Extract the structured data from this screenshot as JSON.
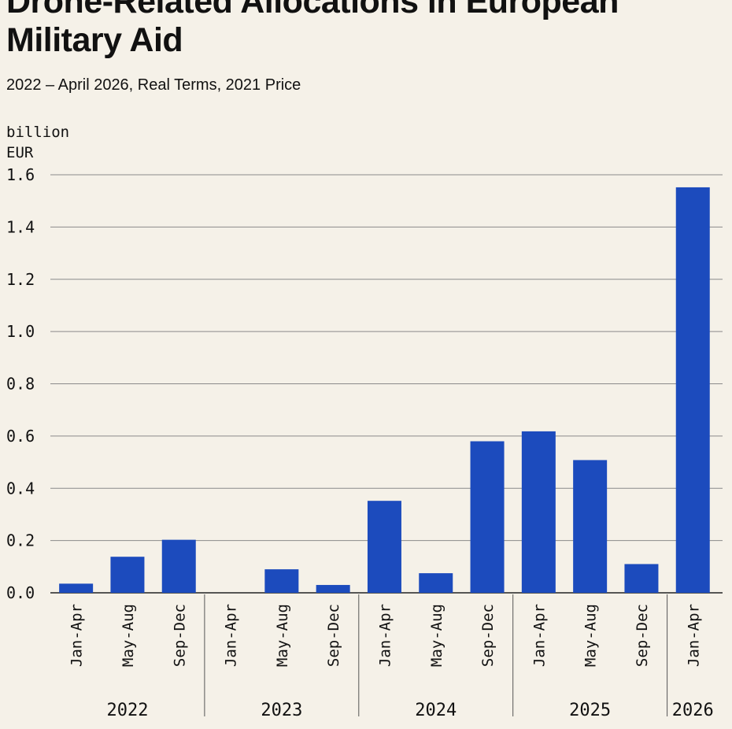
{
  "header": {
    "title": "Drone-Related Allocations in European Military Aid",
    "subtitle": "2022 – April 2026, Real Terms, 2021 Price"
  },
  "colors": {
    "background": "#f5f1e8",
    "bar": "#1c4bbd",
    "grid": "#8a8a8a",
    "text": "#111111"
  },
  "chart_data": {
    "type": "bar",
    "ylabel_lines": [
      "billion",
      "EUR"
    ],
    "ylim": [
      0,
      1.6
    ],
    "yticks": [
      "0.0",
      "0.2",
      "0.4",
      "0.6",
      "0.8",
      "1.0",
      "1.2",
      "1.4",
      "1.6"
    ],
    "grid": true,
    "categories": [
      {
        "period": "Jan-Apr",
        "year": "2022",
        "value": 0.035
      },
      {
        "period": "May-Aug",
        "year": "2022",
        "value": 0.138
      },
      {
        "period": "Sep-Dec",
        "year": "2022",
        "value": 0.203
      },
      {
        "period": "Jan-Apr",
        "year": "2023",
        "value": 0.0
      },
      {
        "period": "May-Aug",
        "year": "2023",
        "value": 0.09
      },
      {
        "period": "Sep-Dec",
        "year": "2023",
        "value": 0.03
      },
      {
        "period": "Jan-Apr",
        "year": "2024",
        "value": 0.352
      },
      {
        "period": "May-Aug",
        "year": "2024",
        "value": 0.075
      },
      {
        "period": "Sep-Dec",
        "year": "2024",
        "value": 0.58
      },
      {
        "period": "Jan-Apr",
        "year": "2025",
        "value": 0.618
      },
      {
        "period": "May-Aug",
        "year": "2025",
        "value": 0.508
      },
      {
        "period": "Sep-Dec",
        "year": "2025",
        "value": 0.11
      },
      {
        "period": "Jan-Apr",
        "year": "2026",
        "value": 1.552
      }
    ],
    "year_groups": [
      "2022",
      "2023",
      "2024",
      "2025",
      "2026"
    ]
  }
}
